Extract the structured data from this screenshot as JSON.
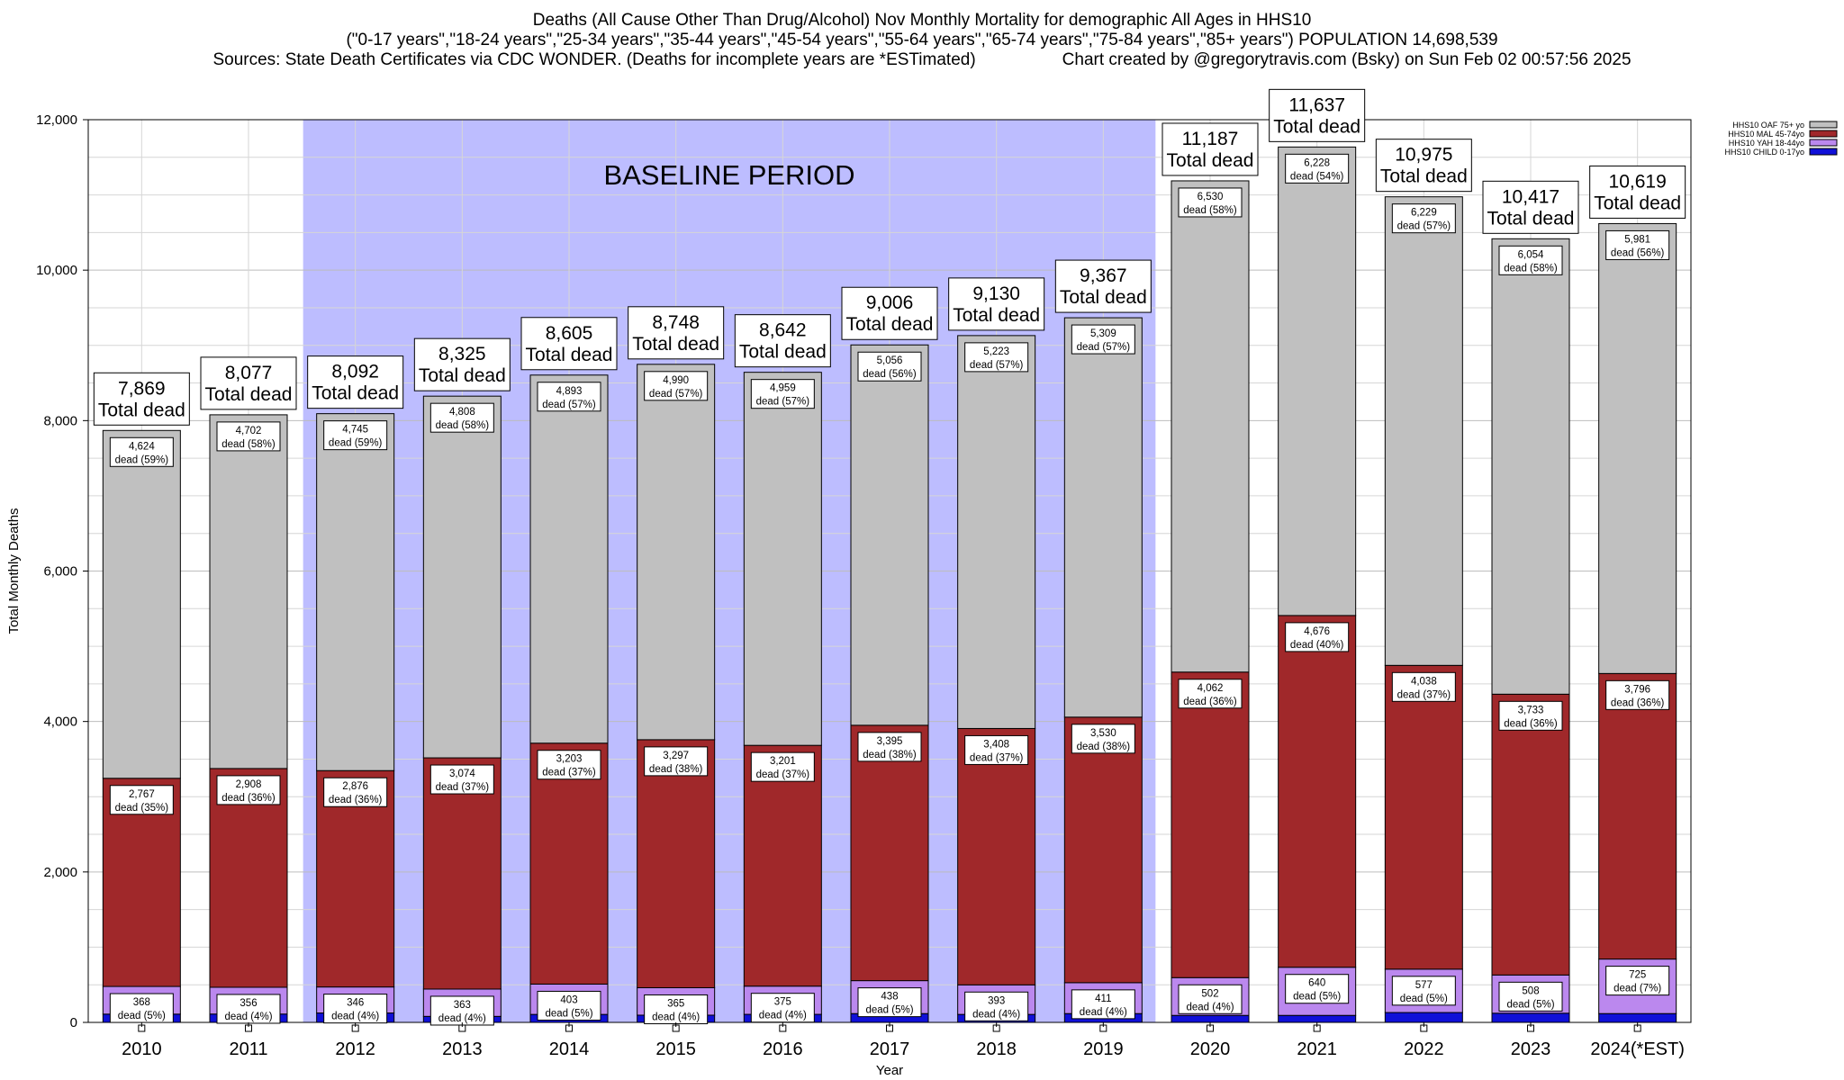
{
  "header": {
    "title_line1": "Deaths (All Cause Other Than Drug/Alcohol) Nov Monthly Mortality for demographic All Ages in HHS10",
    "title_line2": "(\"0-17 years\",\"18-24 years\",\"25-34 years\",\"35-44 years\",\"45-54 years\",\"55-64 years\",\"65-74 years\",\"75-84 years\",\"85+ years\") POPULATION 14,698,539",
    "title_line3_left": "Sources: State Death Certificates via CDC WONDER. (Deaths for incomplete years are *ESTimated)",
    "title_line3_right": "Chart created by @gregorytravis.com (Bsky) on Sun Feb 02 00:57:56 2025"
  },
  "chart_data": {
    "type": "bar",
    "stacked": true,
    "categories": [
      "2010",
      "2011",
      "2012",
      "2013",
      "2014",
      "2015",
      "2016",
      "2017",
      "2018",
      "2019",
      "2020",
      "2021",
      "2022",
      "2023",
      "2024(*EST)"
    ],
    "xlabel": "Year",
    "ylabel": "Total Monthly Deaths",
    "ylim": [
      0,
      12000
    ],
    "yticks": [
      0,
      2000,
      4000,
      6000,
      8000,
      10000,
      12000
    ],
    "ytick_labels": [
      "0",
      "2,000",
      "4,000",
      "6,000",
      "8,000",
      "10,000",
      "12,000"
    ],
    "grid": true,
    "legend_position": "top-right",
    "baseline_period": {
      "label": "BASELINE PERIOD",
      "start": "2012",
      "end": "2019",
      "color": "#bdbdff"
    },
    "totals": [
      7869,
      8077,
      8092,
      8325,
      8605,
      8748,
      8642,
      9006,
      9130,
      9367,
      11187,
      11637,
      10975,
      10417,
      10619
    ],
    "total_labels": [
      "7,869",
      "8,077",
      "8,092",
      "8,325",
      "8,605",
      "8,748",
      "8,642",
      "9,006",
      "9,130",
      "9,367",
      "11,187",
      "11,637",
      "10,975",
      "10,417",
      "10,619"
    ],
    "total_suffix": "Total dead",
    "series": [
      {
        "name": "HHS10 CHILD 0-17yo",
        "color": "#1010d8",
        "values": [
          110,
          111,
          125,
          80,
          106,
          96,
          107,
          117,
          106,
          117,
          93,
          93,
          131,
          122,
          117
        ],
        "labels": [
          "",
          "",
          "",
          "",
          "",
          "",
          "",
          "",
          "",
          "",
          "",
          "",
          "",
          "",
          ""
        ]
      },
      {
        "name": "HHS10 YAH 18-44yo",
        "color": "#bb88ee",
        "values": [
          368,
          356,
          346,
          363,
          403,
          365,
          375,
          438,
          393,
          411,
          502,
          640,
          577,
          508,
          725
        ],
        "labels": [
          "368\ndead (5%)",
          "356\ndead (4%)",
          "346\ndead (4%)",
          "363\ndead (4%)",
          "403\ndead (5%)",
          "365\ndead (4%)",
          "375\ndead (4%)",
          "438\ndead (5%)",
          "393\ndead (4%)",
          "411\ndead (4%)",
          "502\ndead (4%)",
          "640\ndead (5%)",
          "577\ndead (5%)",
          "508\ndead (5%)",
          "725\ndead (7%)"
        ]
      },
      {
        "name": "HHS10 MAL 45-74yo",
        "color": "#a0282a",
        "values": [
          2767,
          2908,
          2876,
          3074,
          3203,
          3297,
          3201,
          3395,
          3408,
          3530,
          4062,
          4676,
          4038,
          3733,
          3796
        ],
        "labels": [
          "2,767\ndead (35%)",
          "2,908\ndead (36%)",
          "2,876\ndead (36%)",
          "3,074\ndead (37%)",
          "3,203\ndead (37%)",
          "3,297\ndead (38%)",
          "3,201\ndead (37%)",
          "3,395\ndead (38%)",
          "3,408\ndead (37%)",
          "3,530\ndead (38%)",
          "4,062\ndead (36%)",
          "4,676\ndead (40%)",
          "4,038\ndead (37%)",
          "3,733\ndead (36%)",
          "3,796\ndead (36%)"
        ]
      },
      {
        "name": "HHS10 OAF 75+ yo",
        "color": "#c0c0c0",
        "values": [
          4624,
          4702,
          4745,
          4808,
          4893,
          4990,
          4959,
          5056,
          5223,
          5309,
          6530,
          6228,
          6229,
          6054,
          5981
        ],
        "labels": [
          "4,624\ndead (59%)",
          "4,702\ndead (58%)",
          "4,745\ndead (59%)",
          "4,808\ndead (58%)",
          "4,893\ndead (57%)",
          "4,990\ndead (57%)",
          "4,959\ndead (57%)",
          "5,056\ndead (56%)",
          "5,223\ndead (57%)",
          "5,309\ndead (57%)",
          "6,530\ndead (58%)",
          "6,228\ndead (54%)",
          "6,229\ndead (57%)",
          "6,054\ndead (58%)",
          "5,981\ndead (56%)"
        ]
      }
    ],
    "legend_order": [
      "HHS10 OAF 75+ yo",
      "HHS10 MAL 45-74yo",
      "HHS10 YAH 18-44yo",
      "HHS10 CHILD 0-17yo"
    ]
  }
}
